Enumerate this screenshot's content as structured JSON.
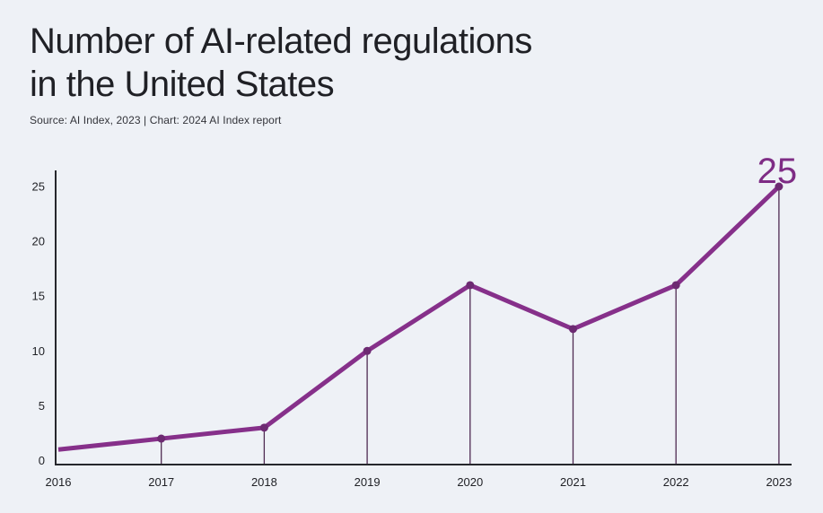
{
  "header": {
    "title_line1": "Number of AI-related regulations",
    "title_line2": "in the United States",
    "source": "Source: AI Index, 2023 | Chart: 2024 AI Index report"
  },
  "colors": {
    "background": "#eef1f6",
    "title": "#1f2025",
    "source_text": "#33343a",
    "axis": "#26272c",
    "tick_text": "#212227",
    "line": "#86308a",
    "marker": "#6d2a72",
    "dropline": "#4f2b52",
    "annotation": "#7e2c85"
  },
  "chart_data": {
    "type": "line",
    "title": "Number of AI-related regulations in the United States",
    "source": "Source: AI Index, 2023 | Chart: 2024 AI Index report",
    "categories": [
      "2016",
      "2017",
      "2018",
      "2019",
      "2020",
      "2021",
      "2022",
      "2023"
    ],
    "values": [
      1,
      2,
      3,
      10,
      16,
      12,
      16,
      25
    ],
    "yticks": [
      0,
      5,
      10,
      15,
      20,
      25
    ],
    "ylim": [
      0,
      27
    ],
    "xlabel": "",
    "ylabel": "",
    "grid": false,
    "legend": "none",
    "annotation": {
      "label": "25",
      "category": "2023",
      "value": 25
    },
    "marker_on_first_point": false,
    "droplines_from": "2017"
  }
}
